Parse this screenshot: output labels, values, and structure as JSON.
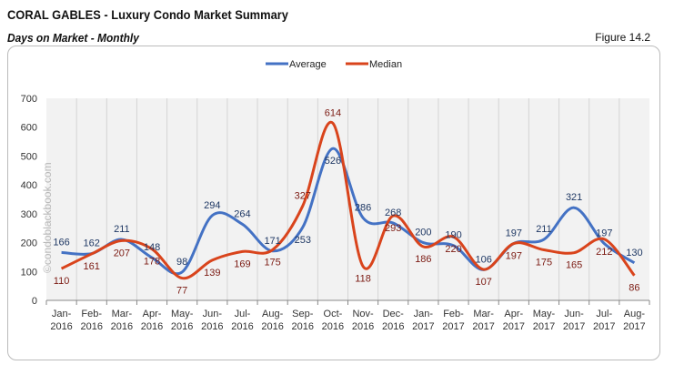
{
  "header": {
    "title": "CORAL GABLES - Luxury Condo Market Summary",
    "subtitle": "Days on Market - Monthly",
    "figure": "Figure 14.2"
  },
  "watermark": "©condoblackbook.com",
  "chart_data": {
    "type": "line",
    "categories": [
      "Jan-2016",
      "Feb-2016",
      "Mar-2016",
      "Apr-2016",
      "May-2016",
      "Jun-2016",
      "Jul-2016",
      "Aug-2016",
      "Sep-2016",
      "Oct-2016",
      "Nov-2016",
      "Dec-2016",
      "Jan-2017",
      "Feb-2017",
      "Mar-2017",
      "Apr-2017",
      "May-2017",
      "Jun-2017",
      "Jul-2017",
      "Aug-2017"
    ],
    "series": [
      {
        "name": "Average",
        "color": "#4472c4",
        "label_color": "#1f3864",
        "values": [
          166,
          162,
          211,
          148,
          98,
          294,
          264,
          171,
          253,
          526,
          286,
          268,
          200,
          190,
          106,
          197,
          211,
          321,
          197,
          130
        ]
      },
      {
        "name": "Median",
        "color": "#d9441c",
        "label_color": "#7b1a12",
        "values": [
          110,
          161,
          207,
          178,
          77,
          139,
          169,
          175,
          327,
          614,
          118,
          293,
          186,
          220,
          107,
          197,
          175,
          165,
          212,
          86
        ]
      }
    ],
    "ylim": [
      0,
      700
    ],
    "yticks": [
      0,
      100,
      200,
      300,
      400,
      500,
      600,
      700
    ],
    "grid": "vertical",
    "smooth": true,
    "legend": "top-center"
  }
}
